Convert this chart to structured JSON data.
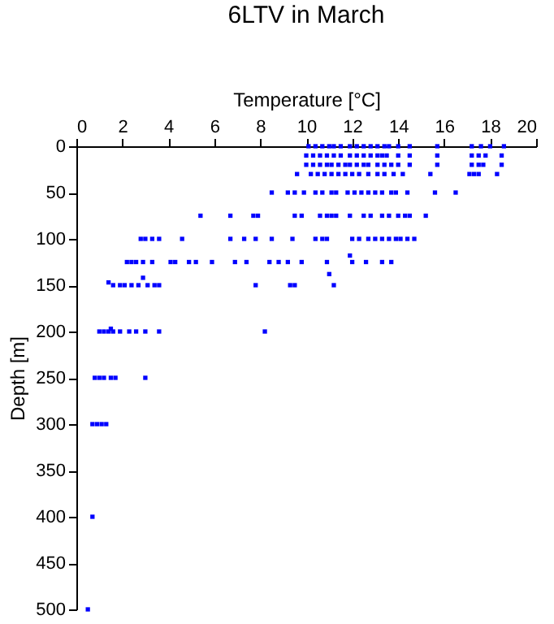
{
  "chart_data": {
    "type": "scatter",
    "title": "6LTV in March",
    "xlabel": "Temperature [°C]",
    "ylabel": "Depth [m]",
    "xlim": [
      0,
      20
    ],
    "xticks": [
      0,
      2,
      4,
      6,
      8,
      10,
      12,
      14,
      16,
      18,
      20
    ],
    "ylim": [
      500,
      0
    ],
    "yticks": [
      0,
      50,
      100,
      150,
      200,
      250,
      300,
      350,
      400,
      450,
      500
    ],
    "grid": false,
    "marker": "square",
    "series": [
      {
        "color": "#0000ff",
        "x": [
          10.1,
          10.4,
          10.7,
          11.0,
          11.2,
          11.5,
          11.9,
          12.2,
          12.5,
          12.8,
          13.1,
          13.4,
          13.6,
          14.0,
          14.5,
          15.7,
          17.2,
          17.6,
          18.0,
          18.6
        ],
        "values": [
          0,
          0,
          0,
          0,
          0,
          0,
          0,
          0,
          0,
          0,
          0,
          0,
          0,
          0,
          0,
          0,
          0,
          0,
          0,
          0
        ]
      },
      {
        "color": "#0000ff",
        "x": [
          10.0,
          10.3,
          10.6,
          10.9,
          11.2,
          11.5,
          11.9,
          12.2,
          12.5,
          12.8,
          13.1,
          13.3,
          13.5,
          14.0,
          14.5,
          15.7,
          17.2,
          17.5,
          17.8,
          18.5
        ],
        "values": [
          10,
          10,
          10,
          10,
          10,
          10,
          10,
          10,
          10,
          10,
          10,
          10,
          10,
          10,
          10,
          10,
          10,
          10,
          10,
          10
        ]
      },
      {
        "color": "#0000ff",
        "x": [
          10.0,
          10.3,
          10.6,
          10.9,
          11.1,
          11.4,
          11.7,
          11.9,
          12.2,
          12.5,
          12.7,
          13.1,
          13.4,
          13.7,
          14.0,
          14.5,
          15.7,
          17.2,
          17.5,
          17.7,
          18.5
        ],
        "values": [
          20,
          20,
          20,
          20,
          20,
          20,
          20,
          20,
          20,
          20,
          20,
          20,
          20,
          20,
          20,
          20,
          20,
          20,
          20,
          20,
          20
        ]
      },
      {
        "color": "#0000ff",
        "x": [
          9.6,
          10.2,
          10.5,
          10.8,
          11.1,
          11.4,
          11.7,
          12.0,
          12.3,
          12.7,
          13.1,
          13.4,
          13.8,
          14.2,
          15.4,
          17.1,
          17.3,
          17.5,
          18.3
        ],
        "values": [
          30,
          30,
          30,
          30,
          30,
          30,
          30,
          30,
          30,
          30,
          30,
          30,
          30,
          30,
          30,
          30,
          30,
          30,
          30
        ]
      },
      {
        "color": "#0000ff",
        "x": [
          8.5,
          9.2,
          9.5,
          9.9,
          10.4,
          10.7,
          11.1,
          11.3,
          11.8,
          12.1,
          12.4,
          12.7,
          13.0,
          13.3,
          13.7,
          13.9,
          14.4,
          15.6,
          16.5
        ],
        "values": [
          50,
          50,
          50,
          50,
          50,
          50,
          50,
          50,
          50,
          50,
          50,
          50,
          50,
          50,
          50,
          50,
          50,
          50,
          50
        ]
      },
      {
        "color": "#0000ff",
        "x": [
          5.4,
          6.7,
          7.7,
          7.9,
          9.5,
          9.8,
          10.6,
          10.9,
          11.1,
          11.3,
          11.9,
          12.5,
          12.8,
          13.3,
          13.6,
          14.0,
          14.3,
          14.5,
          15.2
        ],
        "values": [
          75,
          75,
          75,
          75,
          75,
          75,
          75,
          75,
          75,
          75,
          75,
          75,
          75,
          75,
          75,
          75,
          75,
          75,
          75
        ]
      },
      {
        "color": "#0000ff",
        "x": [
          2.8,
          3.0,
          3.3,
          3.6,
          4.6,
          6.7,
          7.3,
          7.8,
          8.5,
          9.4,
          10.4,
          10.7,
          10.9,
          12.0,
          12.3,
          12.7,
          13.0,
          13.3,
          13.6,
          13.9,
          14.1,
          14.4,
          14.7,
          11.9
        ],
        "values": [
          100,
          100,
          100,
          100,
          100,
          100,
          100,
          100,
          100,
          100,
          100,
          100,
          100,
          100,
          100,
          100,
          100,
          100,
          100,
          100,
          100,
          100,
          100,
          118
        ]
      },
      {
        "color": "#0000ff",
        "x": [
          2.2,
          2.4,
          2.6,
          2.9,
          3.3,
          4.1,
          4.3,
          4.9,
          5.2,
          5.9,
          6.9,
          7.4,
          8.4,
          8.8,
          9.2,
          9.8,
          10.9,
          12.0,
          12.6,
          13.3,
          13.7,
          11.0,
          2.9
        ],
        "values": [
          125,
          125,
          125,
          125,
          125,
          125,
          125,
          125,
          125,
          125,
          125,
          125,
          125,
          125,
          125,
          125,
          125,
          125,
          125,
          125,
          125,
          138,
          142
        ]
      },
      {
        "color": "#0000ff",
        "x": [
          1.4,
          1.6,
          1.9,
          2.1,
          2.4,
          2.7,
          3.1,
          3.4,
          3.6,
          7.8,
          9.3,
          9.5,
          11.2
        ],
        "values": [
          147,
          150,
          150,
          150,
          150,
          150,
          150,
          150,
          150,
          150,
          150,
          150,
          150
        ]
      },
      {
        "color": "#0000ff",
        "x": [
          1.5,
          1.0,
          1.2,
          1.4,
          1.6,
          1.9,
          2.3,
          2.6,
          3.0,
          3.6,
          8.2
        ],
        "values": [
          197,
          200,
          200,
          200,
          200,
          200,
          200,
          200,
          200,
          200,
          200
        ]
      },
      {
        "color": "#0000ff",
        "x": [
          0.8,
          1.0,
          1.2,
          1.5,
          1.7,
          3.0,
          0.7,
          0.9,
          1.1,
          1.3,
          0.7,
          0.5
        ],
        "values": [
          250,
          250,
          250,
          250,
          250,
          250,
          300,
          300,
          300,
          300,
          400,
          500
        ]
      }
    ]
  }
}
